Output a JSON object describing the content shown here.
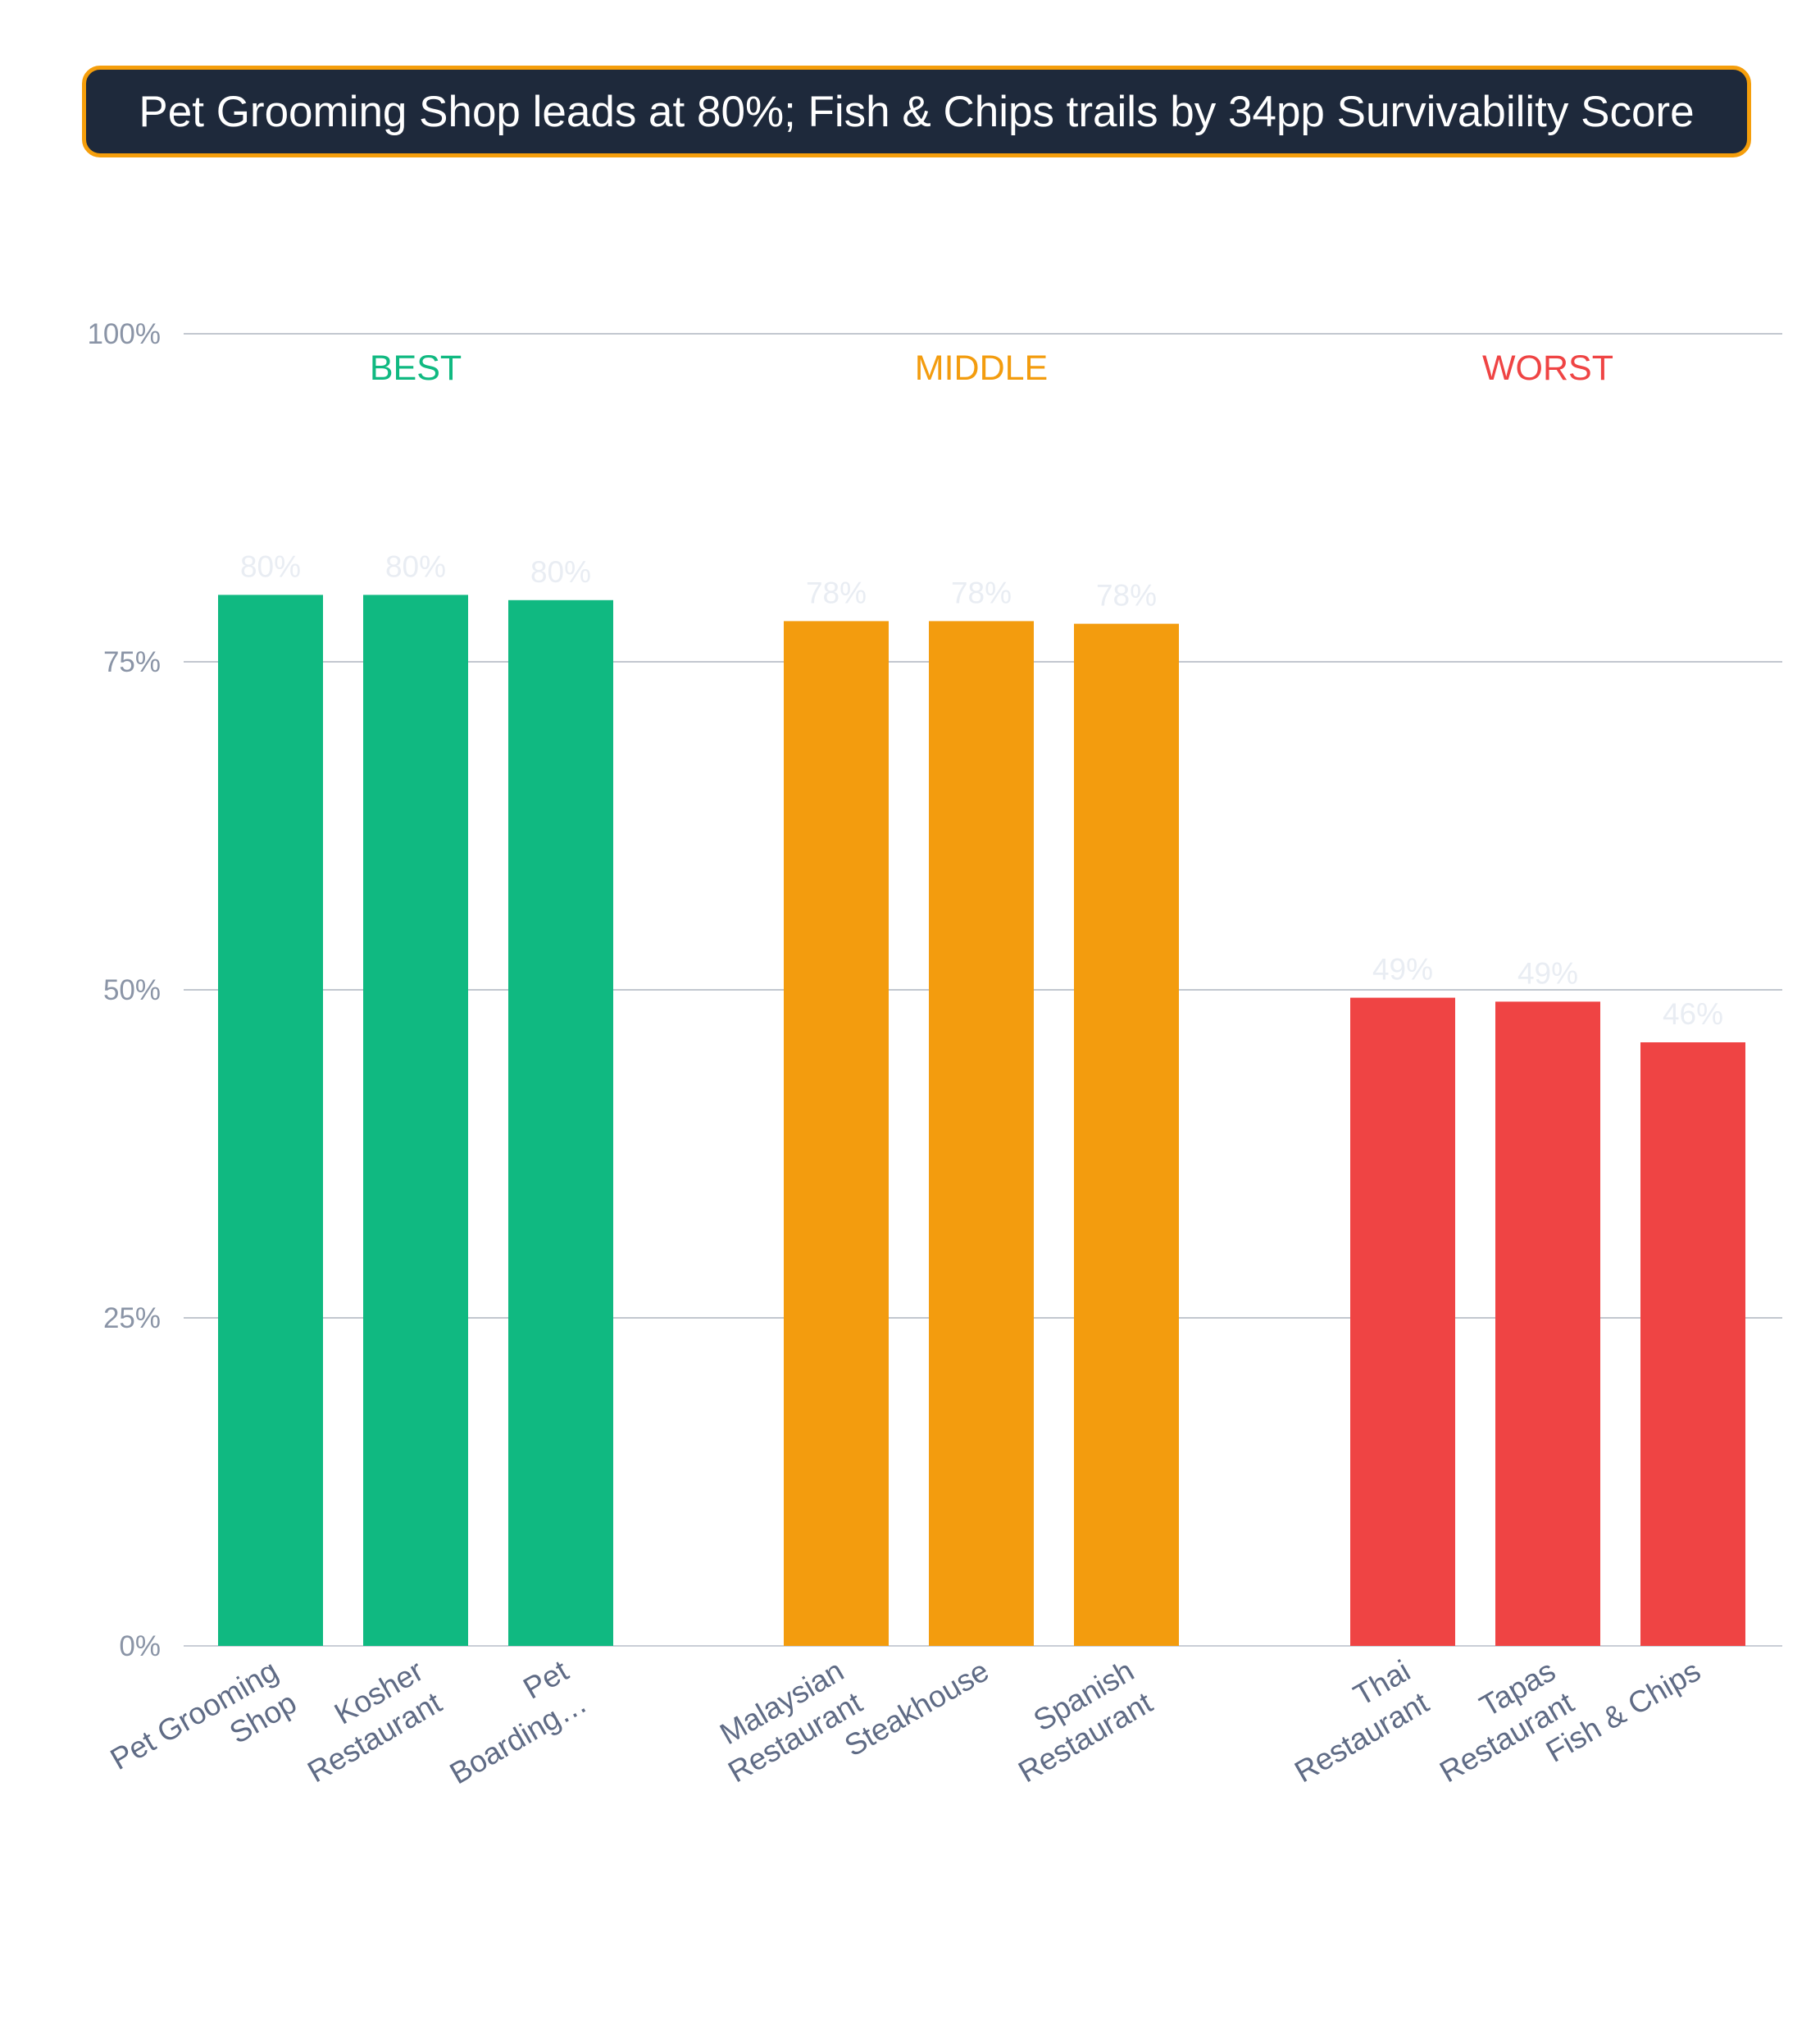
{
  "title": "Pet Grooming Shop leads at 80%; Fish & Chips trails by 34pp Survivability Score",
  "colors": {
    "best": "#10b981",
    "middle": "#f39c0e",
    "worst": "#ef4444",
    "title_bg": "#1e293b",
    "title_border": "#f59e0b"
  },
  "chart_data": {
    "type": "bar",
    "title": "Pet Grooming Shop leads at 80%; Fish & Chips trails by 34pp Survivability Score",
    "xlabel": "",
    "ylabel": "",
    "ylim": [
      0,
      100
    ],
    "yticks": [
      0,
      25,
      50,
      75,
      100
    ],
    "ytick_labels": [
      "0%",
      "25%",
      "50%",
      "75%",
      "100%"
    ],
    "grid": true,
    "groups": [
      {
        "name": "BEST",
        "color_key": "best",
        "bars": [
          {
            "category": [
              "Pet Grooming",
              "Shop"
            ],
            "value": 80.1,
            "label": "80%"
          },
          {
            "category": [
              "Kosher",
              "Restaurant"
            ],
            "value": 80.1,
            "label": "80%"
          },
          {
            "category": [
              "Pet",
              "Boarding…"
            ],
            "value": 79.7,
            "label": "80%"
          }
        ]
      },
      {
        "name": "MIDDLE",
        "color_key": "middle",
        "bars": [
          {
            "category": [
              "Malaysian",
              "Restaurant"
            ],
            "value": 78.1,
            "label": "78%"
          },
          {
            "category": [
              "Steakhouse"
            ],
            "value": 78.1,
            "label": "78%"
          },
          {
            "category": [
              "Spanish",
              "Restaurant"
            ],
            "value": 77.9,
            "label": "78%"
          }
        ]
      },
      {
        "name": "WORST",
        "color_key": "worst",
        "bars": [
          {
            "category": [
              "Thai",
              "Restaurant"
            ],
            "value": 49.4,
            "label": "49%"
          },
          {
            "category": [
              "Tapas",
              "Restaurant"
            ],
            "value": 49.1,
            "label": "49%"
          },
          {
            "category": [
              "Fish & Chips"
            ],
            "value": 46.0,
            "label": "46%"
          }
        ]
      }
    ]
  }
}
